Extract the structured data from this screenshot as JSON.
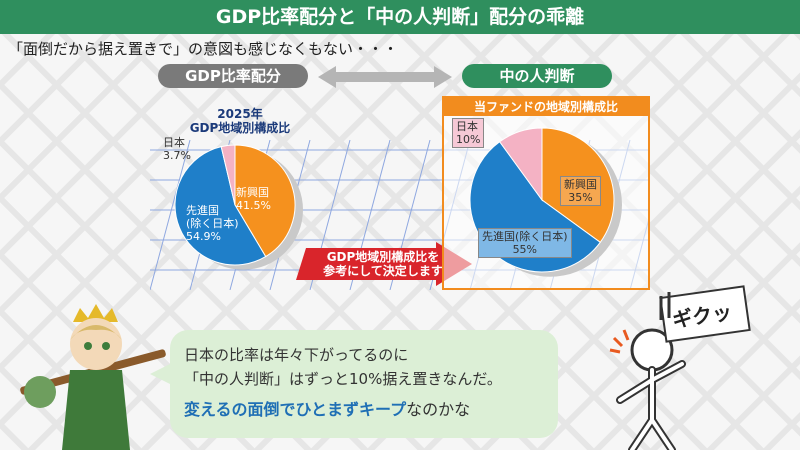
{
  "title": "GDP比率配分と「中の人判断」配分の乖離",
  "subtitle": "「面倒だから据え置きで」の意図も感じなくもない・・・",
  "labels": {
    "left_pill": "GDP比率配分",
    "right_pill": "中の人判断"
  },
  "gdp_chart": {
    "title_line1": "2025年",
    "title_line2": "GDP地域別構成比",
    "slices": [
      {
        "name": "新興国",
        "value_text": "41.5%",
        "value": 41.5,
        "color": "#f5911e"
      },
      {
        "name": "先進国",
        "sub": "(除く日本)",
        "value_text": "54.9%",
        "value": 54.9,
        "color": "#1f7fc9"
      },
      {
        "name": "日本",
        "value_text": "3.7%",
        "value": 3.7,
        "color": "#f4b2c4"
      }
    ]
  },
  "fund_chart": {
    "header": "当ファンドの地域別構成比",
    "slices": [
      {
        "name": "新興国",
        "value_text": "35%",
        "value": 35,
        "color": "#f5911e"
      },
      {
        "name": "先進国(除く日本)",
        "value_text": "55%",
        "value": 55,
        "color": "#1f7fc9"
      },
      {
        "name": "日本",
        "value_text": "10%",
        "value": 10,
        "color": "#f4b2c4"
      }
    ]
  },
  "arrow_text": {
    "line1": "GDP地域別構成比を",
    "line2": "参考にして決定します"
  },
  "speech": {
    "line1": "日本の比率は年々下がってるのに",
    "line2": "「中の人判断」はずっと10%据え置きなんだ。",
    "line3_emph": "変えるの面倒でひとまずキープ",
    "line3_rest": "なのかな"
  },
  "sign_text": "ギクッ"
}
